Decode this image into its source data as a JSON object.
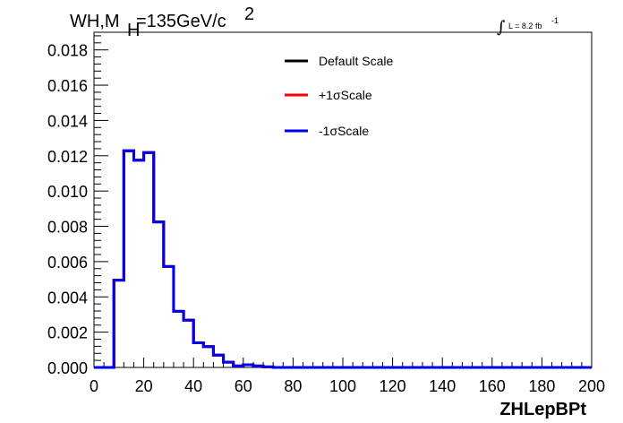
{
  "chart_data": {
    "type": "line",
    "style": "step-histogram",
    "title": {
      "main": "WH,M",
      "sub": "H",
      "value": "=135GeV/c",
      "sup": "2"
    },
    "luminosity": {
      "integral": "∫",
      "text": "L = 8.2 fb",
      "sup": "-1"
    },
    "xlabel": "ZHLepBPt",
    "ylabel": "",
    "xlim": [
      0,
      200
    ],
    "ylim": [
      0,
      0.019
    ],
    "x_ticks": [
      0,
      20,
      40,
      60,
      80,
      100,
      120,
      140,
      160,
      180,
      200
    ],
    "x_tick_labels": [
      "0",
      "20",
      "40",
      "60",
      "80",
      "100",
      "120",
      "140",
      "160",
      "180",
      "200"
    ],
    "y_ticks": [
      0,
      0.002,
      0.004,
      0.006,
      0.008,
      0.01,
      0.012,
      0.014,
      0.016,
      0.018
    ],
    "y_tick_labels": [
      "0.000",
      "0.002",
      "0.004",
      "0.006",
      "0.008",
      "0.010",
      "0.012",
      "0.014",
      "0.016",
      "0.018"
    ],
    "grid": false,
    "legend_position": "top-center",
    "bin_edges": [
      0,
      4,
      8,
      12,
      16,
      20,
      24,
      28,
      32,
      36,
      40,
      44,
      48,
      52,
      56,
      60,
      64,
      68,
      72,
      200
    ],
    "series": [
      {
        "name": "Default Scale",
        "color": "#000000",
        "values": [
          0,
          0,
          0.00495,
          0.01228,
          0.01175,
          0.01218,
          0.00825,
          0.00572,
          0.00318,
          0.00268,
          0.0014,
          0.00118,
          0.0007,
          0.0003,
          8e-05,
          0.00015,
          8e-05,
          3e-05,
          0
        ]
      },
      {
        "name": "+1σScale",
        "color": "#ff0000",
        "values": [
          0,
          0,
          0.00495,
          0.01228,
          0.01175,
          0.01218,
          0.00825,
          0.00572,
          0.00318,
          0.00268,
          0.0014,
          0.00118,
          0.0007,
          0.0003,
          8e-05,
          0.00015,
          8e-05,
          3e-05,
          0
        ]
      },
      {
        "name": "-1σScale",
        "color": "#0000ee",
        "values": [
          0,
          0,
          0.00495,
          0.01228,
          0.01175,
          0.01218,
          0.00825,
          0.00572,
          0.00318,
          0.00268,
          0.0014,
          0.00118,
          0.0007,
          0.0003,
          8e-05,
          0.00015,
          8e-05,
          3e-05,
          0
        ]
      }
    ]
  }
}
